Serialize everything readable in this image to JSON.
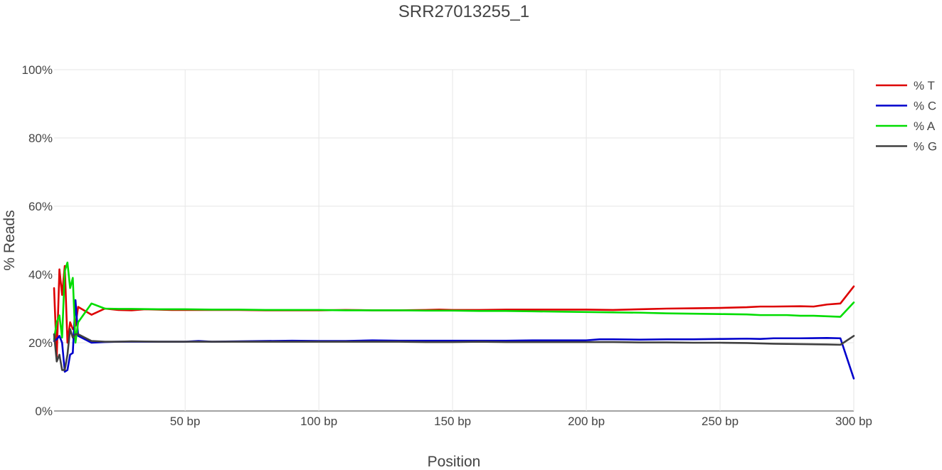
{
  "chart_data": {
    "type": "line",
    "title": "SRR27013255_1",
    "xlabel": "Position",
    "ylabel": "% Reads",
    "xlim": [
      1,
      300
    ],
    "ylim": [
      0,
      100
    ],
    "x_ticks": [
      {
        "value": 50,
        "label": "50 bp"
      },
      {
        "value": 100,
        "label": "100 bp"
      },
      {
        "value": 150,
        "label": "150 bp"
      },
      {
        "value": 200,
        "label": "200 bp"
      },
      {
        "value": 250,
        "label": "250 bp"
      },
      {
        "value": 300,
        "label": "300 bp"
      }
    ],
    "y_ticks": [
      {
        "value": 0,
        "label": "0%"
      },
      {
        "value": 20,
        "label": "20%"
      },
      {
        "value": 40,
        "label": "40%"
      },
      {
        "value": 60,
        "label": "60%"
      },
      {
        "value": 80,
        "label": "80%"
      },
      {
        "value": 100,
        "label": "100%"
      }
    ],
    "grid": true,
    "legend_position": "top-right",
    "series": [
      {
        "name": "% T",
        "color": "#dd0000",
        "points": [
          [
            1,
            36
          ],
          [
            2,
            16
          ],
          [
            3,
            41.5
          ],
          [
            4,
            34
          ],
          [
            5,
            42.5
          ],
          [
            6,
            20
          ],
          [
            7,
            26
          ],
          [
            8,
            24
          ],
          [
            9,
            25
          ],
          [
            10,
            30.5
          ],
          [
            15,
            28.2
          ],
          [
            20,
            30
          ],
          [
            25,
            29.6
          ],
          [
            30,
            29.5
          ],
          [
            35,
            29.8
          ],
          [
            40,
            29.7
          ],
          [
            45,
            29.6
          ],
          [
            50,
            29.6
          ],
          [
            60,
            29.6
          ],
          [
            70,
            29.6
          ],
          [
            80,
            29.5
          ],
          [
            90,
            29.5
          ],
          [
            100,
            29.5
          ],
          [
            110,
            29.6
          ],
          [
            120,
            29.5
          ],
          [
            130,
            29.5
          ],
          [
            140,
            29.6
          ],
          [
            145,
            29.7
          ],
          [
            150,
            29.6
          ],
          [
            160,
            29.6
          ],
          [
            170,
            29.7
          ],
          [
            180,
            29.7
          ],
          [
            190,
            29.7
          ],
          [
            200,
            29.7
          ],
          [
            210,
            29.6
          ],
          [
            220,
            29.8
          ],
          [
            230,
            30
          ],
          [
            240,
            30.1
          ],
          [
            250,
            30.2
          ],
          [
            260,
            30.4
          ],
          [
            265,
            30.6
          ],
          [
            270,
            30.6
          ],
          [
            280,
            30.7
          ],
          [
            285,
            30.6
          ],
          [
            290,
            31.2
          ],
          [
            295,
            31.5
          ],
          [
            300,
            36.5
          ]
        ]
      },
      {
        "name": "% C",
        "color": "#0000cc",
        "points": [
          [
            1,
            20.5
          ],
          [
            2,
            21
          ],
          [
            3,
            22
          ],
          [
            4,
            20
          ],
          [
            5,
            11.5
          ],
          [
            6,
            12
          ],
          [
            7,
            16.5
          ],
          [
            8,
            17
          ],
          [
            9,
            32.5
          ],
          [
            10,
            22
          ],
          [
            15,
            20
          ],
          [
            20,
            20.2
          ],
          [
            25,
            20.3
          ],
          [
            30,
            20.3
          ],
          [
            40,
            20.3
          ],
          [
            50,
            20.3
          ],
          [
            55,
            20.5
          ],
          [
            60,
            20.3
          ],
          [
            70,
            20.4
          ],
          [
            80,
            20.5
          ],
          [
            90,
            20.6
          ],
          [
            100,
            20.5
          ],
          [
            110,
            20.5
          ],
          [
            120,
            20.7
          ],
          [
            130,
            20.6
          ],
          [
            140,
            20.6
          ],
          [
            150,
            20.6
          ],
          [
            160,
            20.6
          ],
          [
            170,
            20.6
          ],
          [
            180,
            20.7
          ],
          [
            190,
            20.7
          ],
          [
            200,
            20.7
          ],
          [
            205,
            21
          ],
          [
            210,
            21
          ],
          [
            220,
            20.9
          ],
          [
            230,
            21
          ],
          [
            240,
            21
          ],
          [
            250,
            21.1
          ],
          [
            260,
            21.2
          ],
          [
            265,
            21.1
          ],
          [
            270,
            21.3
          ],
          [
            275,
            21.3
          ],
          [
            280,
            21.3
          ],
          [
            290,
            21.4
          ],
          [
            295,
            21.3
          ],
          [
            300,
            9.5
          ]
        ]
      },
      {
        "name": "% A",
        "color": "#00dd00",
        "points": [
          [
            1,
            21
          ],
          [
            2,
            26
          ],
          [
            3,
            28
          ],
          [
            4,
            21.5
          ],
          [
            5,
            41
          ],
          [
            6,
            43.5
          ],
          [
            7,
            36
          ],
          [
            8,
            39
          ],
          [
            9,
            20
          ],
          [
            10,
            26
          ],
          [
            15,
            31.5
          ],
          [
            20,
            30
          ],
          [
            25,
            29.9
          ],
          [
            30,
            29.9
          ],
          [
            40,
            29.8
          ],
          [
            50,
            29.8
          ],
          [
            60,
            29.7
          ],
          [
            70,
            29.7
          ],
          [
            80,
            29.6
          ],
          [
            90,
            29.6
          ],
          [
            100,
            29.6
          ],
          [
            110,
            29.5
          ],
          [
            120,
            29.5
          ],
          [
            130,
            29.5
          ],
          [
            140,
            29.4
          ],
          [
            150,
            29.4
          ],
          [
            160,
            29.3
          ],
          [
            170,
            29.3
          ],
          [
            180,
            29.2
          ],
          [
            190,
            29.1
          ],
          [
            200,
            29
          ],
          [
            210,
            28.9
          ],
          [
            220,
            28.8
          ],
          [
            230,
            28.6
          ],
          [
            240,
            28.5
          ],
          [
            250,
            28.4
          ],
          [
            260,
            28.3
          ],
          [
            265,
            28.1
          ],
          [
            270,
            28.1
          ],
          [
            275,
            28.1
          ],
          [
            280,
            27.9
          ],
          [
            285,
            27.9
          ],
          [
            295,
            27.6
          ],
          [
            300,
            31.8
          ]
        ]
      },
      {
        "name": "% G",
        "color": "#404040",
        "points": [
          [
            1,
            22.5
          ],
          [
            2,
            14.5
          ],
          [
            3,
            16.5
          ],
          [
            4,
            12
          ],
          [
            5,
            12
          ],
          [
            6,
            16.5
          ],
          [
            7,
            24
          ],
          [
            8,
            21.5
          ],
          [
            9,
            22.5
          ],
          [
            10,
            22.5
          ],
          [
            15,
            20.5
          ],
          [
            20,
            20.3
          ],
          [
            25,
            20.3
          ],
          [
            30,
            20.4
          ],
          [
            40,
            20.3
          ],
          [
            50,
            20.3
          ],
          [
            60,
            20.3
          ],
          [
            70,
            20.3
          ],
          [
            80,
            20.3
          ],
          [
            90,
            20.3
          ],
          [
            100,
            20.3
          ],
          [
            110,
            20.3
          ],
          [
            120,
            20.3
          ],
          [
            130,
            20.3
          ],
          [
            140,
            20.2
          ],
          [
            150,
            20.2
          ],
          [
            160,
            20.3
          ],
          [
            170,
            20.2
          ],
          [
            180,
            20.2
          ],
          [
            190,
            20.2
          ],
          [
            200,
            20.2
          ],
          [
            210,
            20.2
          ],
          [
            220,
            20.1
          ],
          [
            230,
            20.1
          ],
          [
            240,
            20
          ],
          [
            250,
            20
          ],
          [
            260,
            19.9
          ],
          [
            270,
            19.7
          ],
          [
            280,
            19.6
          ],
          [
            290,
            19.5
          ],
          [
            295,
            19.4
          ],
          [
            300,
            22
          ]
        ]
      }
    ]
  }
}
